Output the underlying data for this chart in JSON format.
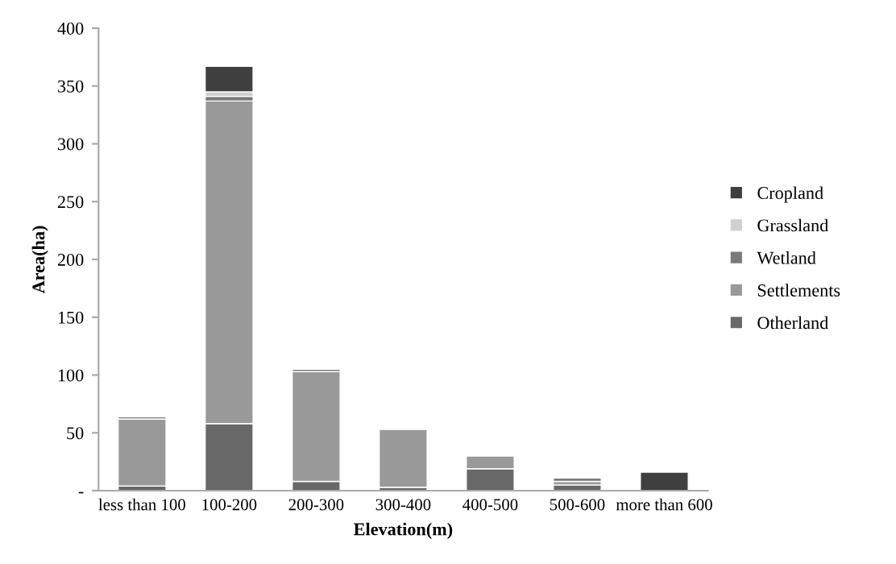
{
  "chart_data": {
    "type": "bar",
    "stacked": true,
    "xlabel": "Elevation(m)",
    "ylabel": "Area(ha)",
    "categories": [
      "less than 100",
      "100-200",
      "200-300",
      "300-400",
      "400-500",
      "500-600",
      "more than 600"
    ],
    "series": [
      {
        "name": "Otherland",
        "color": "#686868",
        "values": [
          4,
          58,
          8,
          3,
          19,
          5,
          null
        ]
      },
      {
        "name": "Settlements",
        "color": "#999999",
        "values": [
          58,
          279,
          95,
          50,
          11,
          3,
          null
        ]
      },
      {
        "name": "Wetland",
        "color": "#7a7a7a",
        "values": [
          2,
          4,
          2,
          null,
          null,
          3,
          null
        ]
      },
      {
        "name": "Grassland",
        "color": "#d0d0d0",
        "values": [
          1,
          4,
          null,
          null,
          null,
          null,
          null
        ]
      },
      {
        "name": "Cropland",
        "color": "#3f3f3f",
        "values": [
          1,
          22,
          null,
          null,
          null,
          null,
          16
        ]
      }
    ],
    "ylim": [
      0,
      400
    ],
    "yticks": [
      {
        "value": 0,
        "label": "-"
      },
      50,
      100,
      150,
      200,
      250,
      300,
      350,
      400
    ],
    "grid": false,
    "legend": "right"
  }
}
